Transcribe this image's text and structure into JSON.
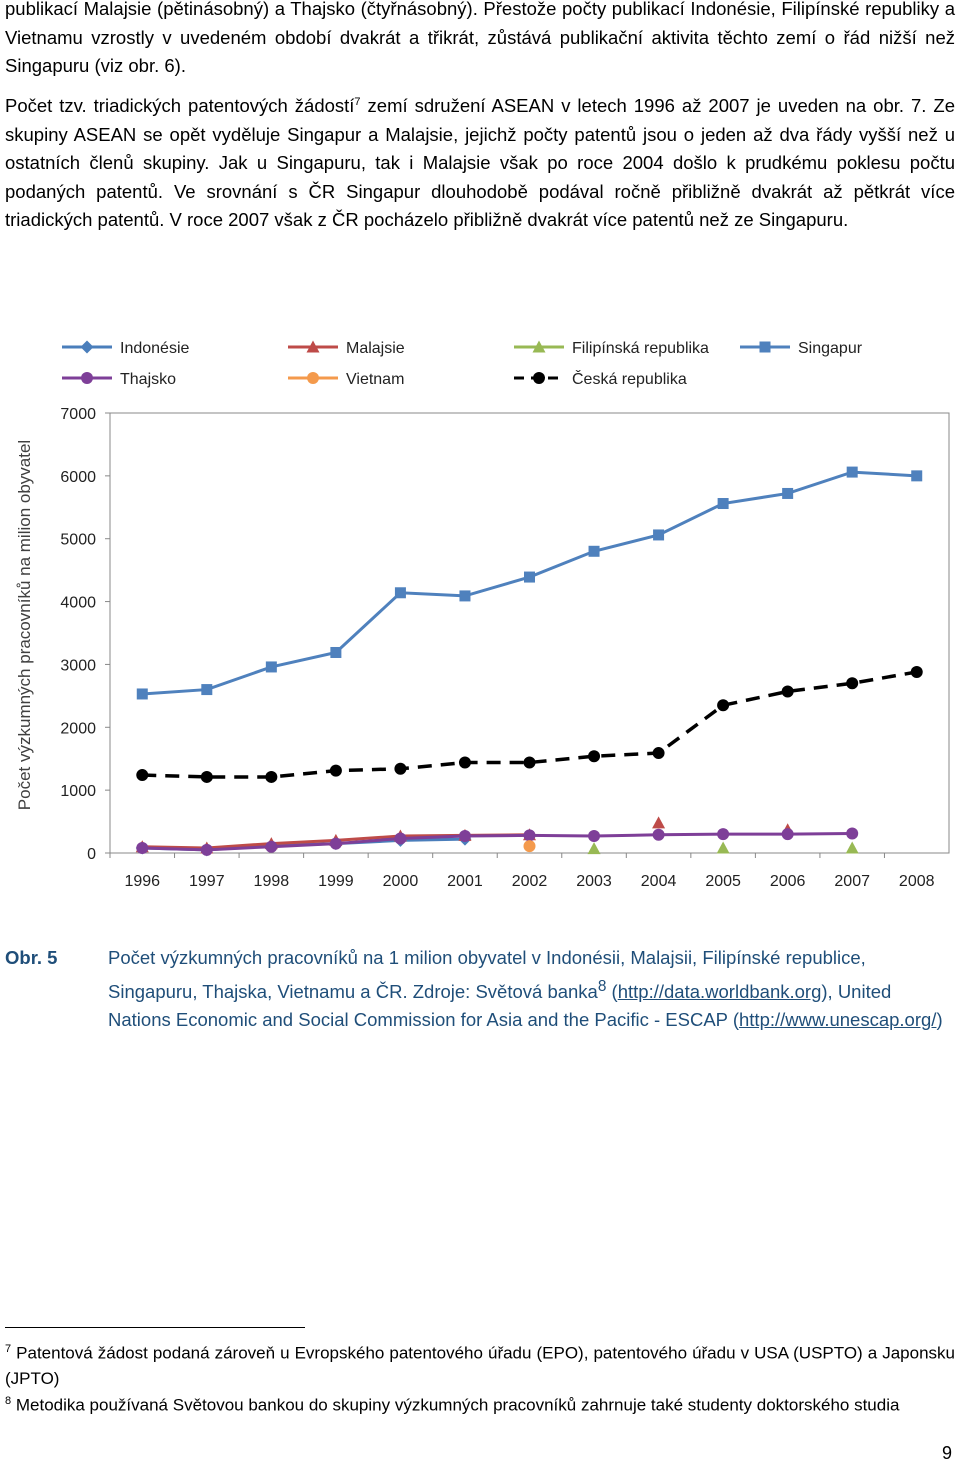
{
  "paragraph1": "publikací Malajsie (pětinásobný) a Thajsko (čtyřnásobný). Přestože počty publikací Indonésie, Filipínské republiky a Vietnamu vzrostly v uvedeném období dvakrát a třikrát, zůstává publikační aktivita těchto zemí o řád nižší než Singapuru (viz obr. 6).",
  "paragraph2": {
    "before": "Počet tzv. triadických patentových žádostí",
    "sup": "7",
    "after": " zemí sdružení ASEAN v letech 1996 až 2007 je uveden na obr. 7. Ze skupiny ASEAN se opět vyděluje Singapur a Malajsie, jejichž počty patentů jsou o jeden až dva řády vyšší než u ostatních členů skupiny. Jak u Singapuru, tak i Malajsie však po roce 2004 došlo k prudkému poklesu počtu podaných patentů. Ve srovnání s ČR Singapur dlouhodobě podával ročně přibližně dvakrát až pětkrát více triadických patentů. V roce 2007 však z ČR pocházelo přibližně dvakrát více patentů než ze Singapuru."
  },
  "chart_data": {
    "type": "line",
    "title": "",
    "xlabel": "",
    "ylabel": "Počet výzkumných pracovníků na milion obyvatel",
    "ylim": [
      0,
      7000
    ],
    "yticks": [
      "0",
      "1000",
      "2000",
      "3000",
      "4000",
      "5000",
      "6000",
      "7000"
    ],
    "categories": [
      "1996",
      "1997",
      "1998",
      "1999",
      "2000",
      "2001",
      "2002",
      "2003",
      "2004",
      "2005",
      "2006",
      "2007",
      "2008"
    ],
    "legend_position": "top",
    "series": [
      {
        "name": "Indonésie",
        "color": "#4a7ebb",
        "marker": "diamond",
        "dash": false,
        "values": [
          80,
          50,
          120,
          150,
          200,
          220,
          null,
          null,
          null,
          null,
          null,
          null,
          null
        ]
      },
      {
        "name": "Malajsie",
        "color": "#be4b48",
        "marker": "triangle",
        "dash": false,
        "values": [
          100,
          80,
          150,
          200,
          270,
          280,
          290,
          null,
          480,
          null,
          370,
          null,
          null
        ]
      },
      {
        "name": "Filipínská republika",
        "color": "#98b954",
        "marker": "triangle",
        "dash": false,
        "values": [
          null,
          null,
          null,
          null,
          null,
          null,
          null,
          70,
          null,
          80,
          null,
          80,
          null
        ]
      },
      {
        "name": "Singapur",
        "color": "#4f81bd",
        "marker": "square",
        "dash": false,
        "values": [
          2530,
          2600,
          2960,
          3190,
          4140,
          4090,
          4390,
          4800,
          5060,
          5560,
          5720,
          6060,
          6000
        ]
      },
      {
        "name": "Thajsko",
        "color": "#7e3f98",
        "marker": "circle",
        "dash": false,
        "values": [
          80,
          50,
          100,
          150,
          230,
          270,
          280,
          270,
          290,
          300,
          300,
          310,
          null
        ]
      },
      {
        "name": "Vietnam",
        "color": "#f49a4c",
        "marker": "circle",
        "dash": false,
        "values": [
          null,
          null,
          null,
          null,
          null,
          null,
          110,
          null,
          null,
          null,
          null,
          null,
          null
        ]
      },
      {
        "name": "Česká republika",
        "color": "#000000",
        "marker": "circle",
        "dash": true,
        "values": [
          1240,
          1210,
          1210,
          1310,
          1340,
          1440,
          1440,
          1540,
          1590,
          2350,
          2570,
          2700,
          2880
        ]
      }
    ]
  },
  "caption": {
    "label": "Obr. 5",
    "text_before": "Počet výzkumných pracovníků na 1 milion obyvatel v Indonésii, Malajsii, Filipínské republice, Singapuru, Thajska, Vietnamu a ČR. Zdroje: Světová banka",
    "sup": "8",
    "link1": "http://data.worldbank.org",
    "text_middle": "), United Nations Economic and Social Commission for Asia and the Pacific - ESCAP (",
    "link2": "http://www.unescap.org/",
    "text_after": ")"
  },
  "footnotes": [
    {
      "num": "7",
      "text": "Patentová žádost podaná zároveň u Evropského patentového úřadu (EPO), patentového úřadu v USA (USPTO) a Japonsku (JPTO)"
    },
    {
      "num": "8",
      "text": "Metodika používaná Světovou bankou do skupiny výzkumných pracovníků zahrnuje také studenty doktorského studia"
    }
  ],
  "page_number": "9"
}
